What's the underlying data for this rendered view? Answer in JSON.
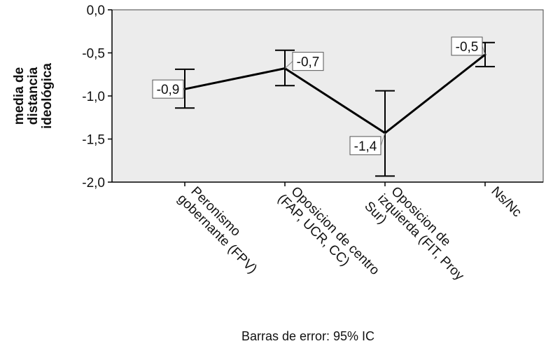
{
  "chart_data": {
    "type": "line",
    "title": "",
    "xlabel": "",
    "ylabel_lines": [
      "media de",
      "distancia",
      "ideológica"
    ],
    "footnote": "Barras de error: 95% IC",
    "ylim": [
      -2.0,
      0.0
    ],
    "yticks": [
      "0,0",
      "-0,5",
      "-1,0",
      "-1,5",
      "-2,0"
    ],
    "ytick_values": [
      0.0,
      -0.5,
      -1.0,
      -1.5,
      -2.0
    ],
    "grid": false,
    "categories": [
      [
        "Peronismo",
        "gobernante (FPV)"
      ],
      [
        "Oposicion de centro",
        "(FAP, UCR, CC)"
      ],
      [
        "Oposicion de",
        "izquierda (FIT, Proy",
        "Sur)"
      ],
      [
        "Ns/Nc"
      ]
    ],
    "series": [
      {
        "values": [
          -0.92,
          -0.68,
          -1.43,
          -0.52
        ],
        "ci_low": [
          -1.14,
          -0.88,
          -1.93,
          -0.66
        ],
        "ci_high": [
          -0.69,
          -0.47,
          -0.94,
          -0.38
        ],
        "data_labels": [
          "-0,9",
          "-0,7",
          "-1,4",
          "-0,5"
        ]
      }
    ],
    "colors": {
      "plot_bg": "#ececec",
      "line": "#000000"
    }
  }
}
